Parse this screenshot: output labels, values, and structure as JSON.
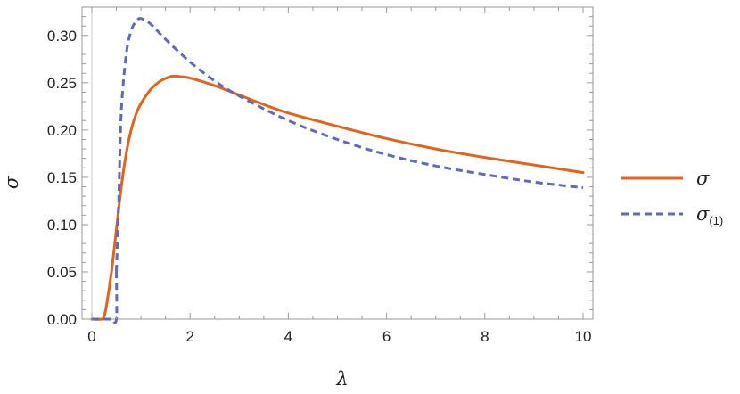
{
  "chart_data": {
    "type": "line",
    "title": "",
    "xlabel": "λ",
    "ylabel": "σ",
    "xlim": [
      0,
      10
    ],
    "ylim": [
      0,
      0.33
    ],
    "xticks": [
      0,
      2,
      4,
      6,
      8,
      10
    ],
    "xtick_labels": [
      "0",
      "2",
      "4",
      "6",
      "8",
      "10"
    ],
    "yticks": [
      0,
      0.05,
      0.1,
      0.15,
      0.2,
      0.25,
      0.3
    ],
    "ytick_labels": [
      "0.00",
      "0.05",
      "0.10",
      "0.15",
      "0.20",
      "0.25",
      "0.30"
    ],
    "grid": false,
    "legend_position": "right",
    "series": [
      {
        "name": "σ",
        "color": "#e0641f",
        "style": "solid",
        "x": [
          0.0,
          0.2,
          0.25,
          0.3,
          0.4,
          0.5,
          0.6,
          0.7,
          0.8,
          0.9,
          1.0,
          1.2,
          1.4,
          1.6,
          1.7,
          1.8,
          2.0,
          2.5,
          3.0,
          3.5,
          4.0,
          5.0,
          6.0,
          7.0,
          8.0,
          9.0,
          10.0
        ],
        "y": [
          0.0,
          0.0,
          0.003,
          0.015,
          0.05,
          0.095,
          0.14,
          0.175,
          0.2,
          0.217,
          0.228,
          0.243,
          0.252,
          0.2565,
          0.257,
          0.2565,
          0.255,
          0.247,
          0.237,
          0.227,
          0.218,
          0.204,
          0.191,
          0.18,
          0.171,
          0.163,
          0.155
        ]
      },
      {
        "name": "σ",
        "subscript": "(1)",
        "color": "#5e6bb5",
        "style": "dashed",
        "x": [
          0.0,
          0.1,
          0.2,
          0.3,
          0.4,
          0.5,
          0.5,
          0.55,
          0.6,
          0.7,
          0.8,
          0.9,
          1.0,
          1.2,
          1.5,
          2.0,
          2.5,
          3.0,
          4.0,
          5.0,
          6.0,
          7.0,
          8.0,
          9.0,
          10.0
        ],
        "y": [
          0.0,
          0.0,
          0.0,
          0.0,
          0.0,
          0.0,
          0.05,
          0.13,
          0.22,
          0.28,
          0.305,
          0.315,
          0.318,
          0.312,
          0.296,
          0.272,
          0.252,
          0.236,
          0.21,
          0.19,
          0.174,
          0.162,
          0.153,
          0.145,
          0.139
        ]
      }
    ]
  }
}
